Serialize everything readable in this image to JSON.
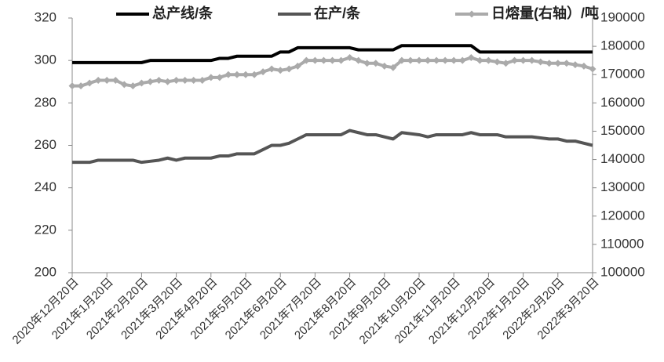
{
  "chart_data": {
    "type": "line",
    "categories": [
      "2020年12月20日",
      null,
      null,
      null,
      "2021年1月20日",
      null,
      null,
      null,
      "2021年2月20日",
      null,
      null,
      null,
      "2021年3月20日",
      null,
      null,
      null,
      "2021年4月20日",
      null,
      null,
      null,
      "2021年5月20日",
      null,
      null,
      null,
      "2021年6月20日",
      null,
      null,
      null,
      "2021年7月20日",
      null,
      null,
      null,
      "2021年8月20日",
      null,
      null,
      null,
      "2021年9月20日",
      null,
      null,
      null,
      "2021年10月20日",
      null,
      null,
      null,
      "2021年11月20日",
      null,
      null,
      null,
      "2021年12月20日",
      null,
      null,
      null,
      "2022年1月20日",
      null,
      null,
      null,
      "2022年2月20日",
      null,
      null,
      null,
      "2022年3月20日"
    ],
    "series": [
      {
        "name": "总产线/条",
        "color": "#000000",
        "values": [
          299,
          299,
          299,
          299,
          299,
          299,
          299,
          299,
          299,
          300,
          300,
          300,
          300,
          300,
          300,
          300,
          300,
          301,
          301,
          302,
          302,
          302,
          302,
          302,
          304,
          304,
          306,
          306,
          306,
          306,
          306,
          306,
          306,
          305,
          305,
          305,
          305,
          305,
          307,
          307,
          307,
          307,
          307,
          307,
          307,
          307,
          307,
          304,
          304,
          304,
          304,
          304,
          304,
          304,
          304,
          304,
          304,
          304,
          304,
          304,
          304
        ]
      },
      {
        "name": "在产/条",
        "color": "#555555",
        "values": [
          252,
          252,
          252,
          253,
          253,
          253,
          253,
          253,
          252,
          252.5,
          253,
          254,
          253,
          254,
          254,
          254,
          254,
          255,
          255,
          256,
          256,
          256,
          258,
          260,
          260,
          261,
          263,
          265,
          265,
          265,
          265,
          265,
          267,
          266,
          265,
          265,
          264,
          263,
          266,
          265.5,
          265,
          264,
          265,
          265,
          265,
          265,
          266,
          265,
          265,
          265,
          264,
          264,
          264,
          264,
          263.5,
          263,
          263,
          262,
          262,
          261,
          260
        ]
      },
      {
        "name": "日熔量(右轴）/吨",
        "color": "#aaaaaa",
        "axis": "y2",
        "marker": "diamond",
        "values": [
          166000,
          166000,
          167000,
          168000,
          168000,
          168000,
          166500,
          166000,
          167000,
          167500,
          168000,
          167500,
          168000,
          168000,
          168000,
          168000,
          169000,
          169000,
          170000,
          170000,
          170000,
          170000,
          171000,
          172000,
          171500,
          172000,
          173000,
          175000,
          175000,
          175000,
          175000,
          175000,
          176000,
          175000,
          174000,
          174000,
          173000,
          172500,
          175000,
          175000,
          175000,
          175000,
          175000,
          175000,
          175000,
          175000,
          176000,
          175000,
          175000,
          174500,
          174000,
          175000,
          175000,
          175000,
          174500,
          174000,
          174000,
          174000,
          173500,
          173000,
          172000
        ]
      }
    ],
    "ylim": [
      200,
      320
    ],
    "yticks": [
      200,
      220,
      240,
      260,
      280,
      300,
      320
    ],
    "y2lim": [
      100000,
      190000
    ],
    "y2ticks": [
      100000,
      110000,
      120000,
      130000,
      140000,
      150000,
      160000,
      170000,
      180000,
      190000
    ],
    "grid": false,
    "legend": "top"
  }
}
